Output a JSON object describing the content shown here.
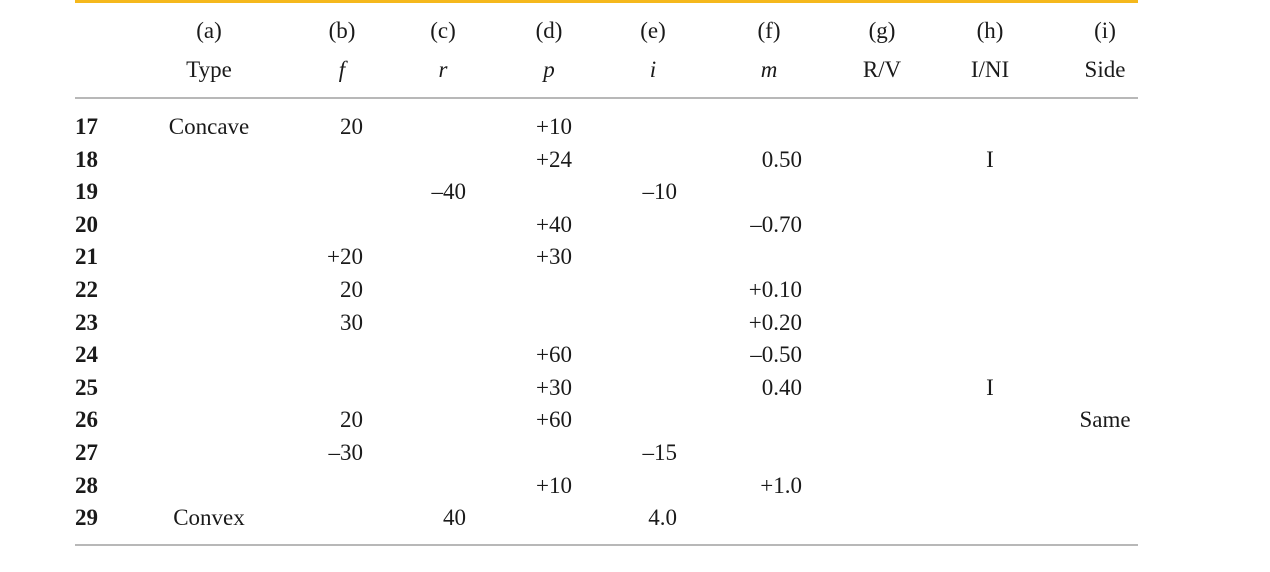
{
  "columns": [
    {
      "letter": "(a)",
      "name": "Type",
      "italic": false
    },
    {
      "letter": "(b)",
      "name": "f",
      "italic": true
    },
    {
      "letter": "(c)",
      "name": "r",
      "italic": true
    },
    {
      "letter": "(d)",
      "name": "p",
      "italic": true
    },
    {
      "letter": "(e)",
      "name": "i",
      "italic": true
    },
    {
      "letter": "(f)",
      "name": "m",
      "italic": true
    },
    {
      "letter": "(g)",
      "name": "R/V",
      "italic": false
    },
    {
      "letter": "(h)",
      "name": "I/NI",
      "italic": false
    },
    {
      "letter": "(i)",
      "name": "Side",
      "italic": false
    }
  ],
  "rows": [
    {
      "num": "17",
      "cells": [
        "Concave",
        "20",
        "",
        "+10",
        "",
        "",
        "",
        "",
        ""
      ]
    },
    {
      "num": "18",
      "cells": [
        "",
        "",
        "",
        "+24",
        "",
        "0.50",
        "",
        "I",
        ""
      ]
    },
    {
      "num": "19",
      "cells": [
        "",
        "",
        "–40",
        "",
        "–10",
        "",
        "",
        "",
        ""
      ]
    },
    {
      "num": "20",
      "cells": [
        "",
        "",
        "",
        "+40",
        "",
        "–0.70",
        "",
        "",
        ""
      ]
    },
    {
      "num": "21",
      "cells": [
        "",
        "+20",
        "",
        "+30",
        "",
        "",
        "",
        "",
        ""
      ]
    },
    {
      "num": "22",
      "cells": [
        "",
        "20",
        "",
        "",
        "",
        "+0.10",
        "",
        "",
        ""
      ]
    },
    {
      "num": "23",
      "cells": [
        "",
        "30",
        "",
        "",
        "",
        "+0.20",
        "",
        "",
        ""
      ]
    },
    {
      "num": "24",
      "cells": [
        "",
        "",
        "",
        "+60",
        "",
        "–0.50",
        "",
        "",
        ""
      ]
    },
    {
      "num": "25",
      "cells": [
        "",
        "",
        "",
        "+30",
        "",
        "0.40",
        "",
        "I",
        ""
      ]
    },
    {
      "num": "26",
      "cells": [
        "",
        "20",
        "",
        "+60",
        "",
        "",
        "",
        "",
        "Same"
      ]
    },
    {
      "num": "27",
      "cells": [
        "",
        "–30",
        "",
        "",
        "–15",
        "",
        "",
        "",
        ""
      ]
    },
    {
      "num": "28",
      "cells": [
        "",
        "",
        "",
        "+10",
        "",
        "+1.0",
        "",
        "",
        ""
      ]
    },
    {
      "num": "29",
      "cells": [
        "Convex",
        "",
        "40",
        "",
        "4.0",
        "",
        "",
        "",
        ""
      ]
    }
  ],
  "colors": {
    "top_rule": "#f5b81c",
    "rules": "#b8b8b8",
    "text": "#1a1a1a"
  }
}
